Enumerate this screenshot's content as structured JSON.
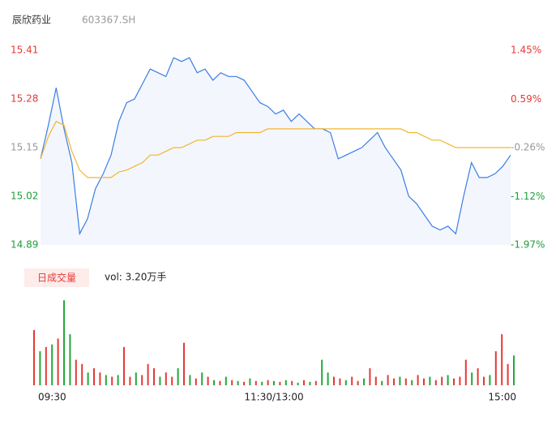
{
  "header": {
    "name": "辰欣药业",
    "code": "603367.SH"
  },
  "chart_data": [
    {
      "type": "line",
      "x": [
        0,
        4,
        8,
        12,
        16,
        20,
        24,
        28,
        32,
        36,
        40,
        44,
        48,
        52,
        56,
        60,
        64,
        68,
        72,
        76,
        80,
        84,
        88,
        92,
        96,
        100,
        104,
        108,
        112,
        116,
        120,
        124,
        128,
        132,
        136,
        140,
        144,
        148,
        152,
        156,
        160,
        164,
        168,
        172,
        176,
        180,
        184,
        188,
        192,
        196,
        200,
        204,
        208,
        212,
        216,
        220,
        224,
        228,
        232,
        236,
        240
      ],
      "xlim": [
        0,
        240
      ],
      "series": [
        {
          "color": "#3a7ee4",
          "fill": "#f3f6fc",
          "values": [
            15.12,
            15.21,
            15.31,
            15.2,
            15.11,
            14.92,
            14.96,
            15.04,
            15.08,
            15.13,
            15.22,
            15.27,
            15.28,
            15.32,
            15.36,
            15.35,
            15.34,
            15.39,
            15.38,
            15.39,
            15.35,
            15.36,
            15.33,
            15.35,
            15.34,
            15.34,
            15.33,
            15.3,
            15.27,
            15.26,
            15.24,
            15.25,
            15.22,
            15.24,
            15.22,
            15.2,
            15.2,
            15.19,
            15.12,
            15.13,
            15.14,
            15.15,
            15.17,
            15.19,
            15.15,
            15.12,
            15.09,
            15.02,
            15.0,
            14.97,
            14.94,
            14.93,
            14.94,
            14.92,
            15.02,
            15.11,
            15.07,
            15.07,
            15.08,
            15.1,
            15.13
          ]
        },
        {
          "color": "#f2b630",
          "values": [
            15.12,
            15.18,
            15.22,
            15.21,
            15.14,
            15.09,
            15.07,
            15.07,
            15.07,
            15.07,
            15.085,
            15.09,
            15.1,
            15.11,
            15.13,
            15.13,
            15.14,
            15.15,
            15.15,
            15.16,
            15.17,
            15.17,
            15.18,
            15.18,
            15.18,
            15.19,
            15.19,
            15.19,
            15.19,
            15.2,
            15.2,
            15.2,
            15.2,
            15.2,
            15.2,
            15.2,
            15.2,
            15.2,
            15.2,
            15.2,
            15.2,
            15.2,
            15.2,
            15.2,
            15.2,
            15.2,
            15.2,
            15.19,
            15.19,
            15.18,
            15.17,
            15.17,
            15.16,
            15.15,
            15.15,
            15.15,
            15.15,
            15.15,
            15.15,
            15.15,
            15.15
          ]
        }
      ],
      "ylim": [
        14.89,
        15.41
      ],
      "yticks": [
        15.41,
        15.28,
        15.15,
        15.02,
        14.89
      ],
      "ytick_colors": [
        "#e53935",
        "#e53935",
        "#999999",
        "#1e9e3a",
        "#1e9e3a"
      ],
      "y2lim": [
        -1.97,
        1.45
      ],
      "y2ticks": [
        {
          "value": 1.45,
          "label": "1.45%"
        },
        {
          "value": 0.59,
          "label": "0.59%"
        },
        {
          "value": -0.26,
          "label": "-0.26%"
        },
        {
          "value": -1.12,
          "label": "-1.12%"
        },
        {
          "value": -1.97,
          "label": "-1.97%"
        }
      ],
      "y2tick_colors": [
        "#e53935",
        "#e53935",
        "#999999",
        "#1e9e3a",
        "#1e9e3a"
      ]
    },
    {
      "type": "bar",
      "label": "日成交量",
      "annotation": "vol: 3.20万手",
      "x": [
        0,
        3,
        6,
        9,
        12,
        15,
        18,
        21,
        24,
        27,
        30,
        33,
        36,
        39,
        42,
        45,
        48,
        51,
        54,
        57,
        60,
        63,
        66,
        69,
        72,
        75,
        78,
        81,
        84,
        87,
        90,
        93,
        96,
        99,
        102,
        105,
        108,
        111,
        114,
        117,
        120,
        123,
        126,
        129,
        132,
        135,
        138,
        141,
        144,
        147,
        150,
        153,
        156,
        159,
        162,
        165,
        168,
        171,
        174,
        177,
        180,
        183,
        186,
        189,
        192,
        195,
        198,
        201,
        204,
        207,
        210,
        213,
        216,
        219,
        222,
        225,
        228,
        231,
        234,
        237,
        240
      ],
      "xlim": [
        0,
        240
      ],
      "xticks": [
        {
          "value": 0,
          "label": "09:30"
        },
        {
          "value": 120,
          "label": "11:30/13:00"
        },
        {
          "value": 240,
          "label": "15:00"
        }
      ],
      "ylim": [
        0,
        105
      ],
      "series": [
        {
          "color": "#e53935",
          "values": [
            65,
            null,
            45,
            null,
            55,
            null,
            null,
            30,
            25,
            null,
            20,
            15,
            null,
            10,
            null,
            45,
            10,
            null,
            12,
            25,
            20,
            null,
            15,
            10,
            null,
            50,
            null,
            8,
            null,
            10,
            null,
            5,
            null,
            6,
            null,
            4,
            null,
            5,
            null,
            6,
            null,
            4,
            null,
            5,
            null,
            6,
            null,
            5,
            null,
            null,
            10,
            8,
            null,
            10,
            5,
            null,
            20,
            10,
            null,
            12,
            8,
            null,
            8,
            null,
            12,
            8,
            null,
            6,
            10,
            null,
            8,
            10,
            30,
            null,
            20,
            10,
            null,
            40,
            60,
            25,
            null
          ]
        },
        {
          "color": "#22a83a",
          "values": [
            null,
            40,
            null,
            48,
            null,
            100,
            60,
            null,
            null,
            15,
            null,
            null,
            12,
            null,
            12,
            null,
            null,
            15,
            null,
            null,
            null,
            10,
            null,
            null,
            20,
            null,
            12,
            null,
            15,
            null,
            6,
            null,
            10,
            null,
            5,
            null,
            8,
            null,
            4,
            null,
            5,
            null,
            6,
            null,
            3,
            null,
            4,
            null,
            30,
            15,
            null,
            null,
            6,
            null,
            null,
            8,
            null,
            null,
            5,
            null,
            null,
            10,
            null,
            6,
            null,
            null,
            10,
            null,
            null,
            12,
            null,
            null,
            null,
            15,
            null,
            null,
            12,
            null,
            null,
            null,
            35
          ]
        }
      ]
    }
  ]
}
